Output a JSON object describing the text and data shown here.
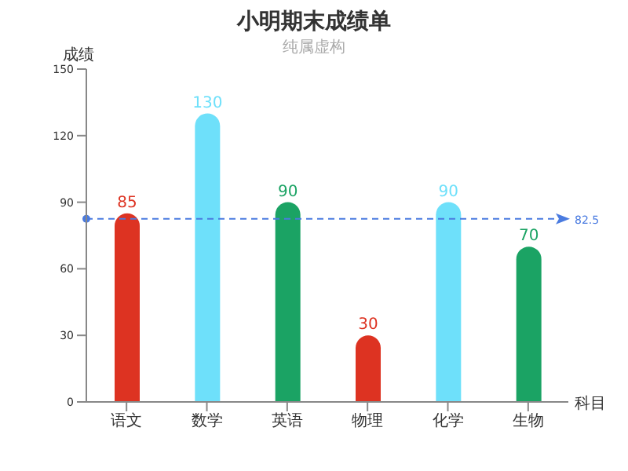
{
  "chart_data": {
    "type": "bar",
    "title": "小明期末成绩单",
    "subtitle": "纯属虚构",
    "xlabel": "科目",
    "ylabel": "成绩",
    "categories": [
      "语文",
      "数学",
      "英语",
      "物理",
      "化学",
      "生物"
    ],
    "values": [
      85,
      130,
      90,
      30,
      90,
      70
    ],
    "colors": [
      "#dd3322",
      "#6ee0fa",
      "#1ba364",
      "#dd3322",
      "#6ee0fa",
      "#1ba364"
    ],
    "ylim": [
      0,
      150
    ],
    "yticks": [
      0,
      30,
      60,
      90,
      120,
      150
    ],
    "grid": false,
    "legend": false,
    "data_labels": true,
    "ref_lines": [
      {
        "axis": "y",
        "value": 82.5,
        "label": "82.5",
        "color": "#4a7be0",
        "line_style": "dashed"
      }
    ]
  }
}
